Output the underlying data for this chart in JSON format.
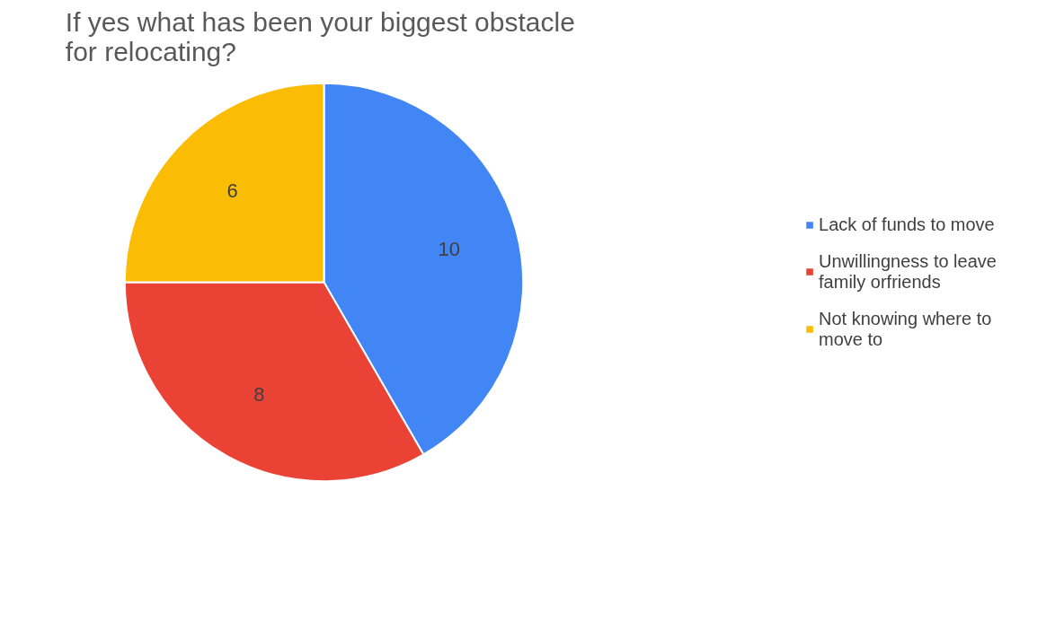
{
  "chart_data": {
    "type": "pie",
    "title": "If yes  what has been your biggest obstacle for relocating?",
    "categories": [
      "Lack of funds to move",
      "Unwillingness to leave family orfriends",
      "Not knowing where to move to"
    ],
    "values": [
      10,
      8,
      6
    ],
    "colors": [
      "#4285f4",
      "#ea4335",
      "#fbbc04"
    ],
    "data_labels": true,
    "legend": "right"
  }
}
